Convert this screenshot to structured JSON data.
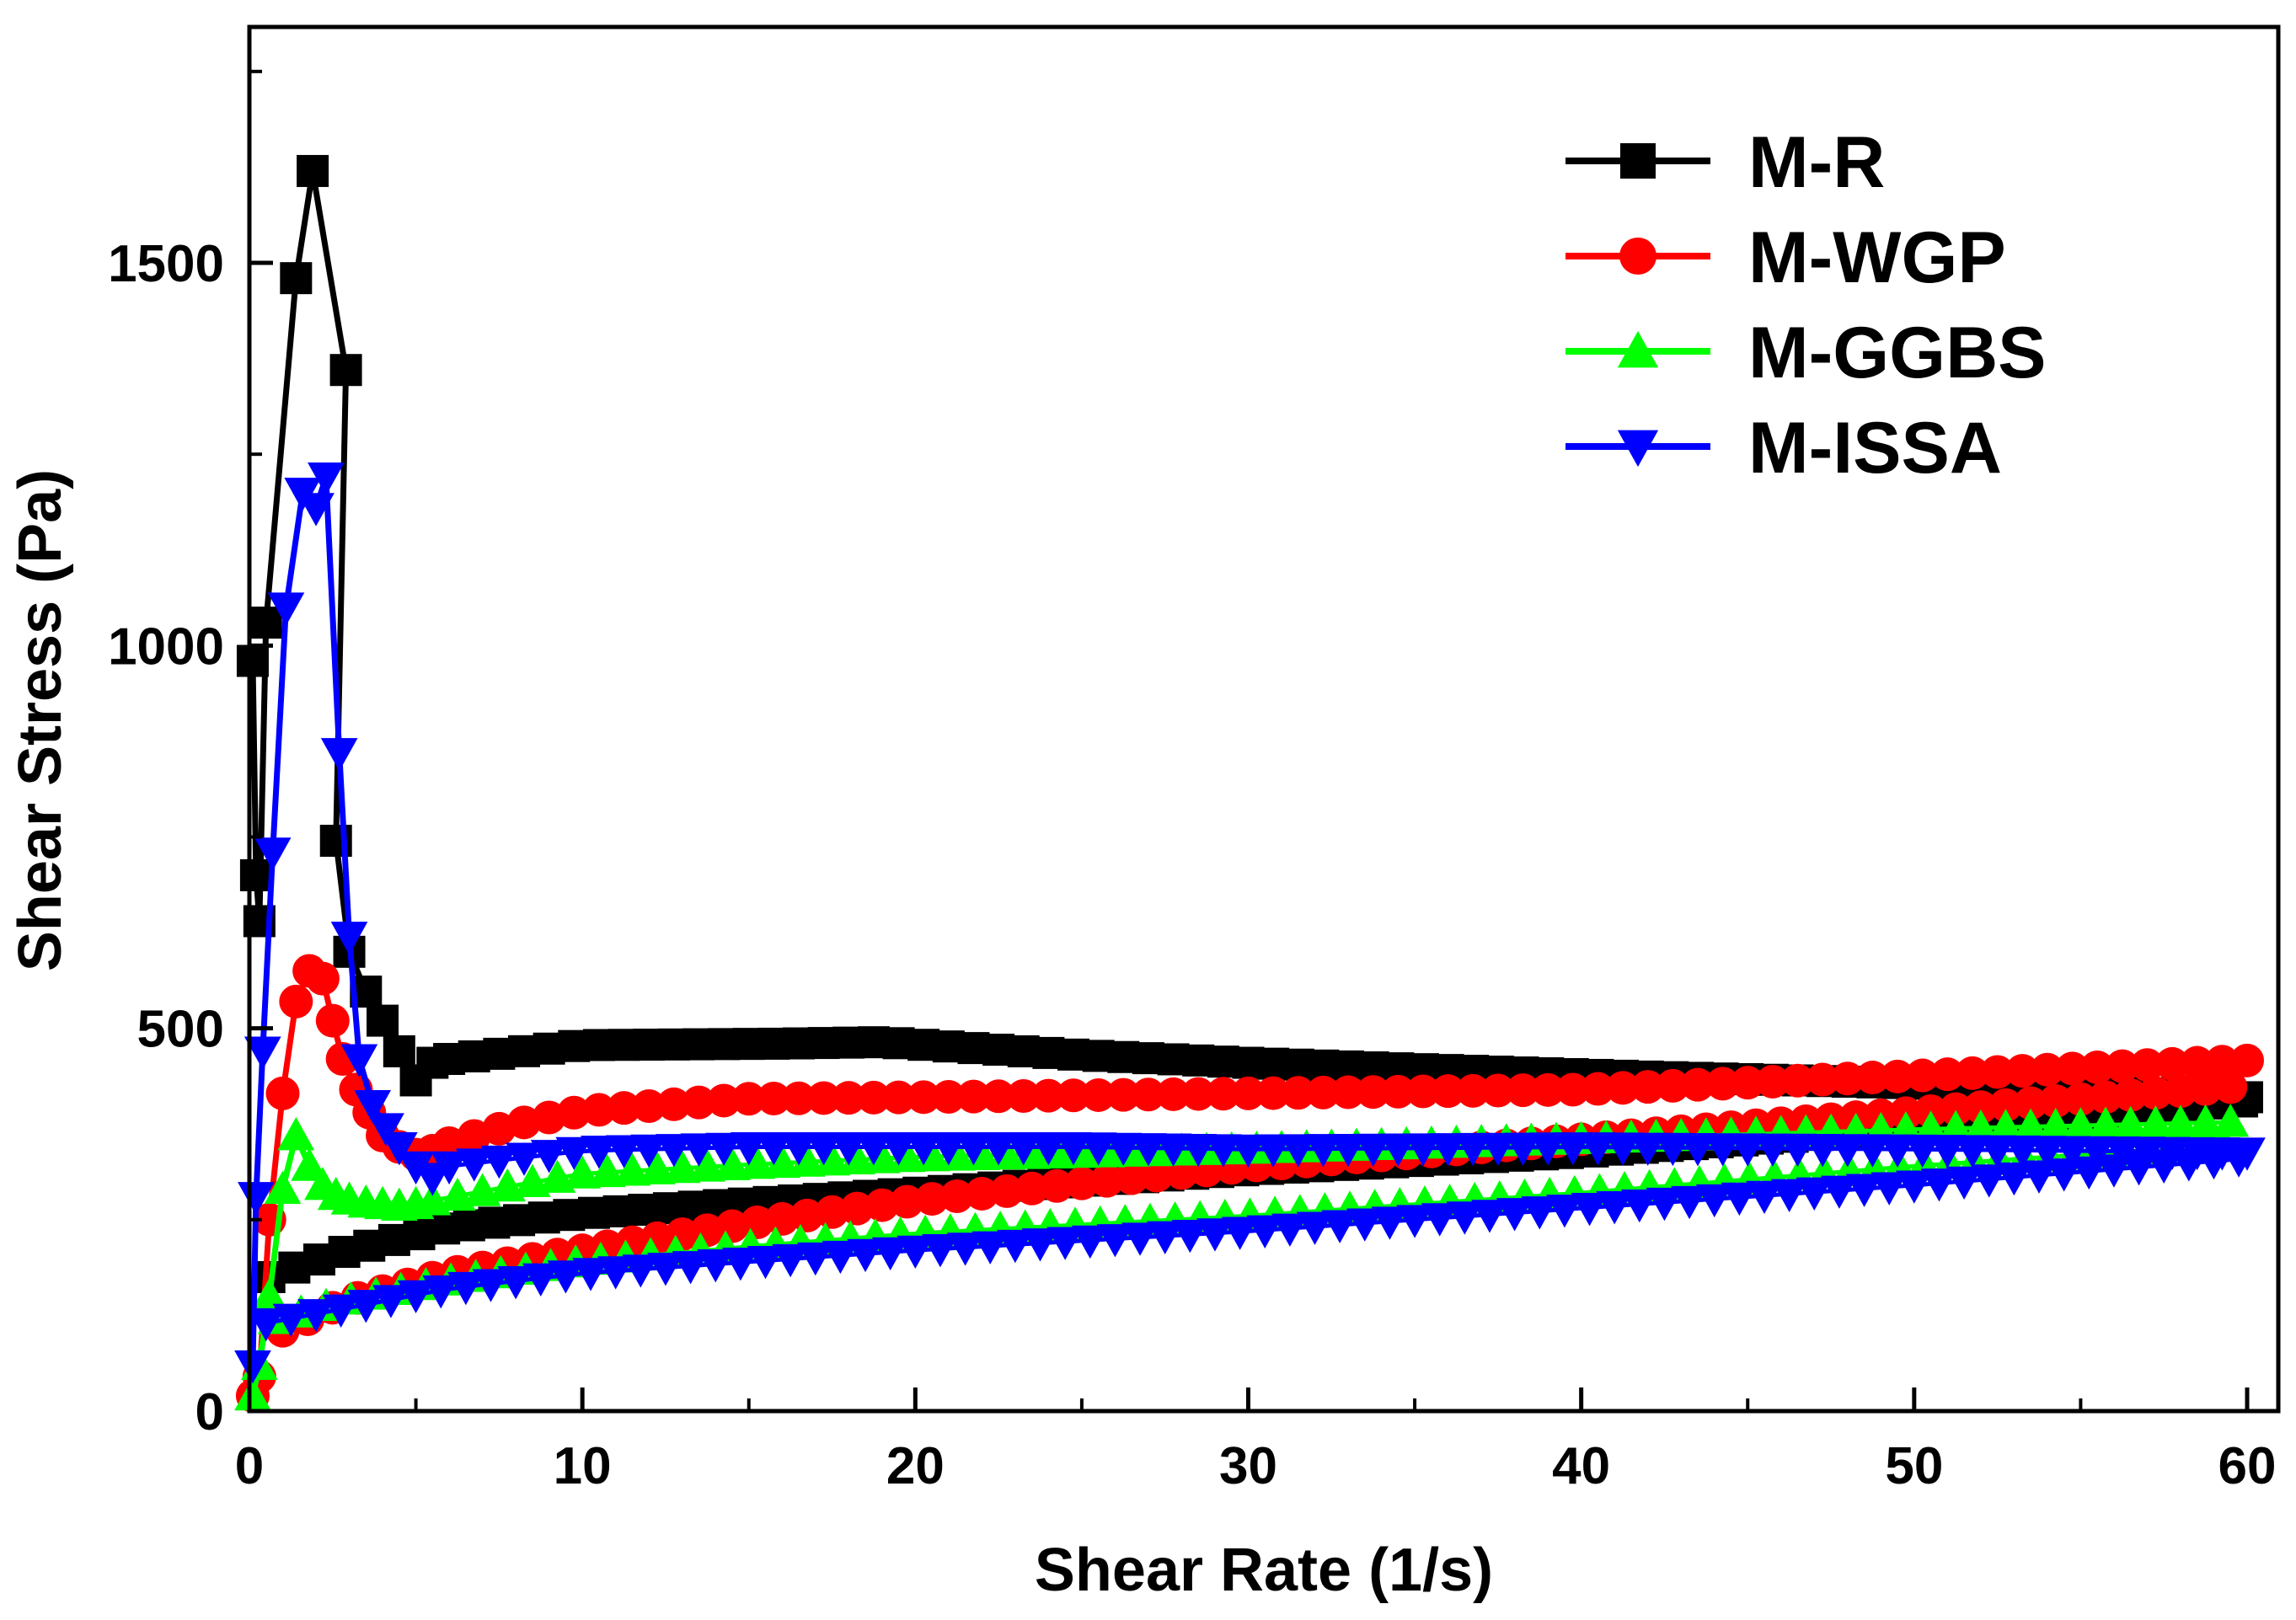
{
  "chart_data": {
    "type": "scatter",
    "title": "",
    "xlabel": "Shear Rate (1/s)",
    "ylabel": "Shear Stress (Pa)",
    "xlim": [
      0,
      61
    ],
    "ylim": [
      0,
      1750
    ],
    "xticks": [
      0,
      10,
      20,
      30,
      40,
      50,
      60
    ],
    "yticks": [
      0,
      500,
      1000,
      1500
    ],
    "xtick_labels": [
      "0",
      "10",
      "20",
      "30",
      "40",
      "50",
      "60"
    ],
    "ytick_labels": [
      "0",
      "500",
      "1000",
      "1500"
    ],
    "legend_position": "top-right",
    "grid": false,
    "series": [
      {
        "name": "M-R",
        "color": "#000000",
        "marker": "square",
        "peak_line": {
          "x": [
            0.5,
            1.4,
            1.9,
            2.9
          ],
          "y": [
            1030,
            1480,
            1620,
            1360
          ]
        },
        "up_x": [
          0.1,
          0.2,
          0.3,
          0.5,
          1.4,
          1.9,
          2.9
        ],
        "up_y": [
          980,
          700,
          640,
          1030,
          1480,
          1620,
          1360
        ],
        "down_x": [
          2.6,
          3.0,
          3.5,
          4.0,
          4.5,
          5.0,
          5.5
        ],
        "down_y": [
          745,
          600,
          548,
          510,
          470,
          432,
          455
        ],
        "plateau_start": 6.0,
        "plateau_end": 60,
        "plateau_step": 0.75,
        "plateau_y": [
          [
            6,
            460
          ],
          [
            10,
            478
          ],
          [
            16,
            480
          ],
          [
            19,
            482
          ],
          [
            25,
            465
          ],
          [
            30,
            455
          ],
          [
            35,
            447
          ],
          [
            42,
            437
          ],
          [
            50,
            428
          ],
          [
            60,
            410
          ]
        ],
        "lower_start": 0.6,
        "lower_end": 60,
        "lower_step": 0.75,
        "lower_y": [
          [
            0.6,
            175
          ],
          [
            1.5,
            190
          ],
          [
            3,
            210
          ],
          [
            6,
            240
          ],
          [
            10,
            258
          ],
          [
            20,
            285
          ],
          [
            30,
            315
          ],
          [
            40,
            338
          ],
          [
            50,
            370
          ],
          [
            60,
            405
          ]
        ]
      },
      {
        "name": "M-WGP",
        "color": "#ff0000",
        "marker": "circle",
        "up_x": [
          0.1,
          0.3,
          0.6,
          1.0,
          1.4,
          1.8,
          2.2
        ],
        "up_y": [
          20,
          45,
          250,
          415,
          535,
          575,
          565
        ],
        "down_x": [
          2.5,
          2.8,
          3.2,
          3.6,
          4.0,
          4.5,
          5.0,
          5.5
        ],
        "down_y": [
          510,
          460,
          420,
          390,
          360,
          345,
          335,
          340
        ],
        "plateau_start": 6.0,
        "plateau_end": 60,
        "plateau_step": 0.75,
        "plateau_y": [
          [
            6,
            350
          ],
          [
            8,
            375
          ],
          [
            10,
            392
          ],
          [
            15,
            408
          ],
          [
            20,
            410
          ],
          [
            30,
            415
          ],
          [
            40,
            420
          ],
          [
            50,
            438
          ],
          [
            60,
            458
          ]
        ],
        "lower_start": 1.0,
        "lower_end": 60,
        "lower_step": 0.75,
        "lower_y": [
          [
            1,
            105
          ],
          [
            3,
            145
          ],
          [
            6,
            180
          ],
          [
            10,
            210
          ],
          [
            15,
            245
          ],
          [
            20,
            275
          ],
          [
            30,
            320
          ],
          [
            40,
            355
          ],
          [
            50,
            390
          ],
          [
            60,
            425
          ]
        ]
      },
      {
        "name": "M-GGBS",
        "color": "#00ff00",
        "marker": "triangle-up",
        "up_x": [
          0.1,
          0.3,
          0.6,
          1.0,
          1.4
        ],
        "up_y": [
          20,
          60,
          150,
          290,
          360
        ],
        "down_x": [
          1.8,
          2.2,
          2.6,
          3.0,
          3.5,
          4.0,
          4.5,
          5.0
        ],
        "down_y": [
          320,
          295,
          282,
          276,
          272,
          270,
          268,
          270
        ],
        "plateau_start": 5.5,
        "plateau_end": 60,
        "plateau_step": 0.75,
        "plateau_y": [
          [
            5.5,
            275
          ],
          [
            8,
            295
          ],
          [
            10,
            310
          ],
          [
            15,
            322
          ],
          [
            20,
            332
          ],
          [
            30,
            342
          ],
          [
            40,
            355
          ],
          [
            50,
            368
          ],
          [
            60,
            378
          ]
        ],
        "lower_start": 0.8,
        "lower_end": 60,
        "lower_step": 0.75,
        "lower_y": [
          [
            0.8,
            120
          ],
          [
            3,
            145
          ],
          [
            6,
            170
          ],
          [
            10,
            195
          ],
          [
            15,
            215
          ],
          [
            20,
            232
          ],
          [
            30,
            255
          ],
          [
            40,
            285
          ],
          [
            50,
            320
          ],
          [
            60,
            350
          ]
        ]
      },
      {
        "name": "M-ISSA",
        "color": "#0000ff",
        "marker": "triangle-down",
        "up_x": [
          0.1,
          0.2,
          0.4,
          0.7,
          1.1,
          1.6,
          2.0,
          2.3
        ],
        "up_y": [
          60,
          280,
          470,
          730,
          1050,
          1200,
          1180,
          1220
        ],
        "down_x": [
          2.7,
          3.0,
          3.3,
          3.7,
          4.1,
          4.5,
          5.0,
          5.5
        ],
        "down_y": [
          860,
          620,
          460,
          400,
          370,
          345,
          320,
          305
        ],
        "plateau_start": 6.0,
        "plateau_end": 60,
        "plateau_step": 0.75,
        "plateau_y": [
          [
            6,
            320
          ],
          [
            10,
            340
          ],
          [
            15,
            345
          ],
          [
            20,
            345
          ],
          [
            25,
            345
          ],
          [
            30,
            342
          ],
          [
            40,
            345
          ],
          [
            50,
            342
          ],
          [
            60,
            338
          ]
        ],
        "lower_start": 0.5,
        "lower_end": 60,
        "lower_step": 0.75,
        "lower_y": [
          [
            0.5,
            115
          ],
          [
            3,
            135
          ],
          [
            6,
            160
          ],
          [
            10,
            180
          ],
          [
            15,
            195
          ],
          [
            20,
            210
          ],
          [
            30,
            235
          ],
          [
            40,
            265
          ],
          [
            50,
            295
          ],
          [
            60,
            330
          ]
        ]
      }
    ]
  }
}
